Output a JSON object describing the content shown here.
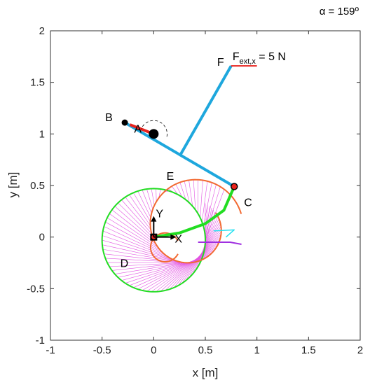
{
  "chart_data": {
    "type": "line",
    "title": "",
    "corner_label": "α = 159º",
    "xlabel": "x [m]",
    "ylabel": "y [m]",
    "xlim": [
      -1,
      2
    ],
    "ylim": [
      -1,
      2
    ],
    "xticks": [
      -1,
      -0.5,
      0,
      0.5,
      1,
      1.5,
      2
    ],
    "yticks": [
      -1,
      -0.5,
      0,
      0.5,
      1,
      1.5,
      2
    ],
    "grid": false,
    "points": [
      {
        "label": "A",
        "x": 0.0,
        "y": 1.0
      },
      {
        "label": "B",
        "x": -0.28,
        "y": 1.11
      },
      {
        "label": "C",
        "x": 0.78,
        "y": 0.49
      },
      {
        "label": "D",
        "x": -0.12,
        "y": -0.1
      },
      {
        "label": "E",
        "x": 0.26,
        "y": 0.8
      },
      {
        "label": "F",
        "x": 0.75,
        "y": 1.66
      }
    ],
    "force": {
      "label": "F",
      "subscript": "ext,x",
      "value": "= 5 N",
      "x0": 0.75,
      "x1": 1.0,
      "y": 1.66
    },
    "frame": {
      "x_axis": "X",
      "y_axis": "Y",
      "origin": [
        0,
        0
      ]
    },
    "colors": {
      "link": "#1ea7dd",
      "crank": "#e8231d",
      "green": "#22dd22",
      "orange": "#f26a32",
      "magenta": "#e254e2",
      "cyan": "#23e0f0",
      "purple": "#a030e0",
      "force": "#e8231d"
    }
  }
}
